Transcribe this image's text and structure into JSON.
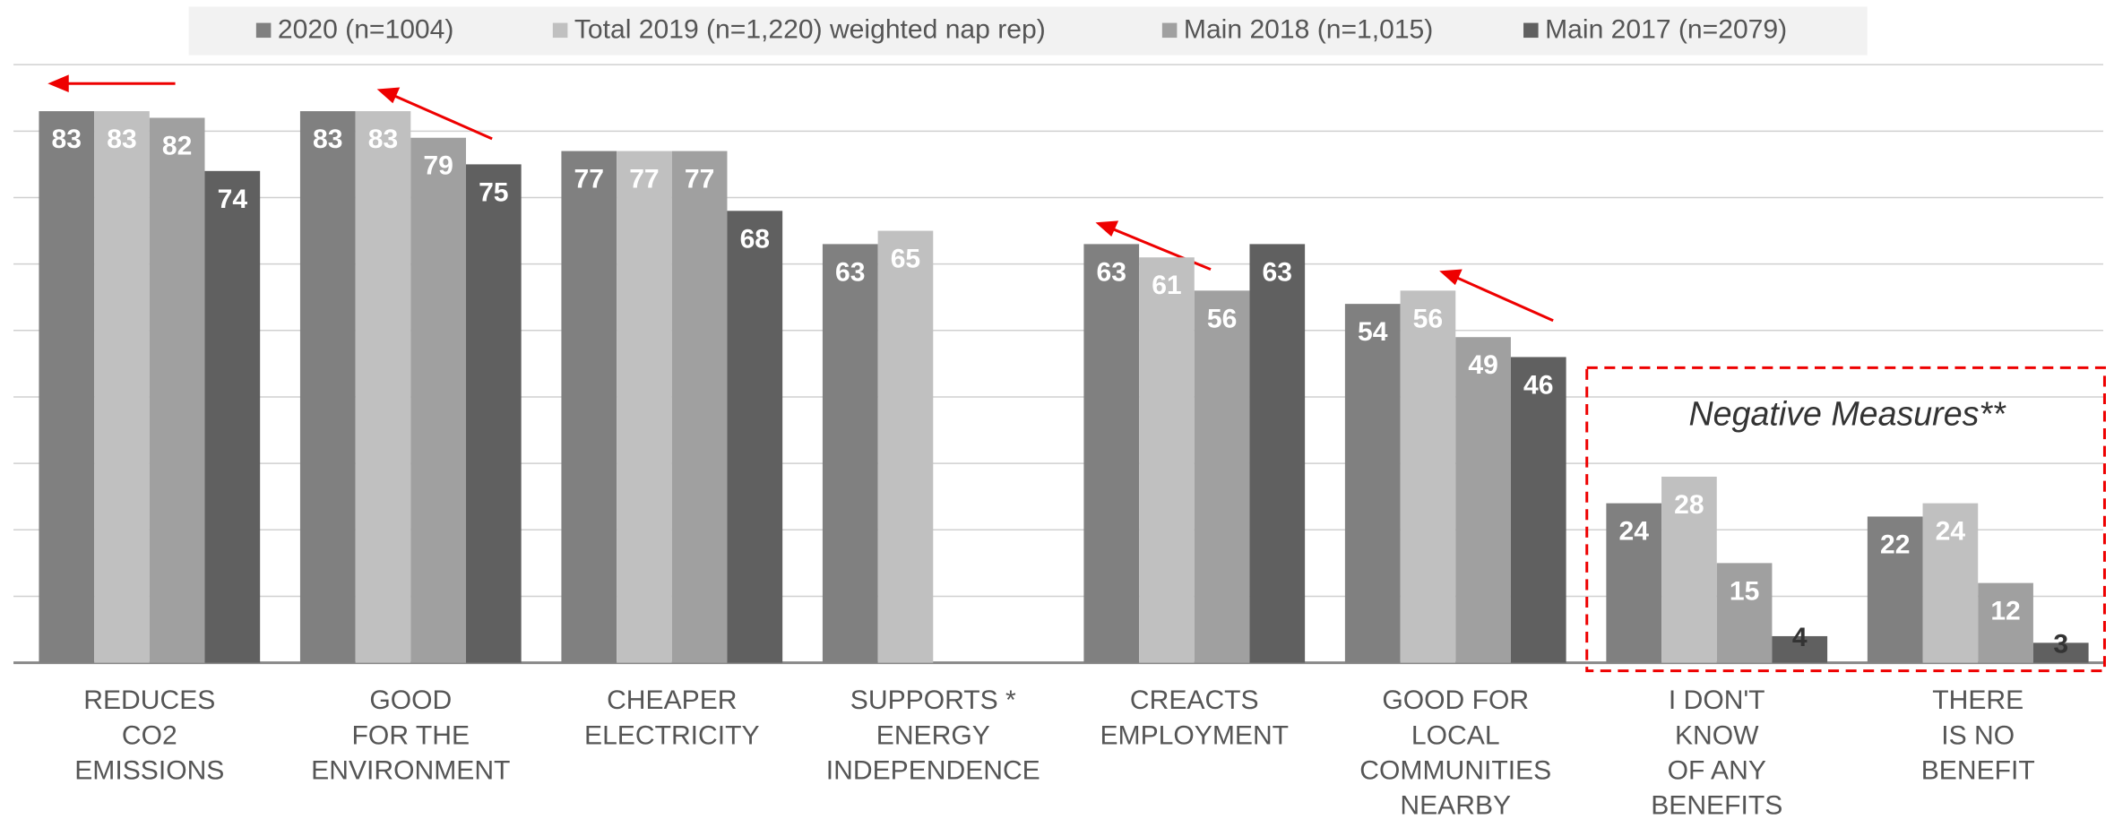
{
  "chart_data": {
    "type": "bar",
    "categories": [
      [
        "REDUCES",
        "CO2",
        "EMISSIONS"
      ],
      [
        "GOOD",
        "FOR THE",
        "ENVIRONMENT"
      ],
      [
        "CHEAPER",
        "ELECTRICITY"
      ],
      [
        "SUPPORTS *",
        "ENERGY",
        "INDEPENDENCE"
      ],
      [
        "CREACTS",
        "EMPLOYMENT"
      ],
      [
        "GOOD FOR",
        "LOCAL",
        "COMMUNITIES",
        "NEARBY"
      ],
      [
        "I DON'T",
        "KNOW",
        "OF ANY",
        "BENEFITS"
      ],
      [
        "THERE",
        "IS NO",
        "BENEFIT"
      ]
    ],
    "series": [
      {
        "name": "2020 (n=1004)",
        "color": "#808080",
        "values": [
          83,
          83,
          77,
          63,
          63,
          54,
          24,
          22
        ]
      },
      {
        "name": "Total 2019 (n=1,220) weighted nap rep)",
        "color": "#c0c0c0",
        "values": [
          83,
          83,
          77,
          65,
          61,
          56,
          28,
          24
        ]
      },
      {
        "name": "Main 2018 (n=1,015)",
        "color": "#a0a0a0",
        "values": [
          82,
          79,
          77,
          null,
          56,
          49,
          15,
          12
        ]
      },
      {
        "name": "Main 2017 (n=2079)",
        "color": "#606060",
        "values": [
          74,
          75,
          68,
          null,
          63,
          46,
          4,
          3
        ]
      }
    ],
    "annotation": "Negative Measures**",
    "ylim": [
      0,
      90
    ],
    "yticks": [
      10,
      20,
      30,
      40,
      50,
      60,
      70,
      80,
      90
    ],
    "grid": true,
    "legend": "top"
  }
}
